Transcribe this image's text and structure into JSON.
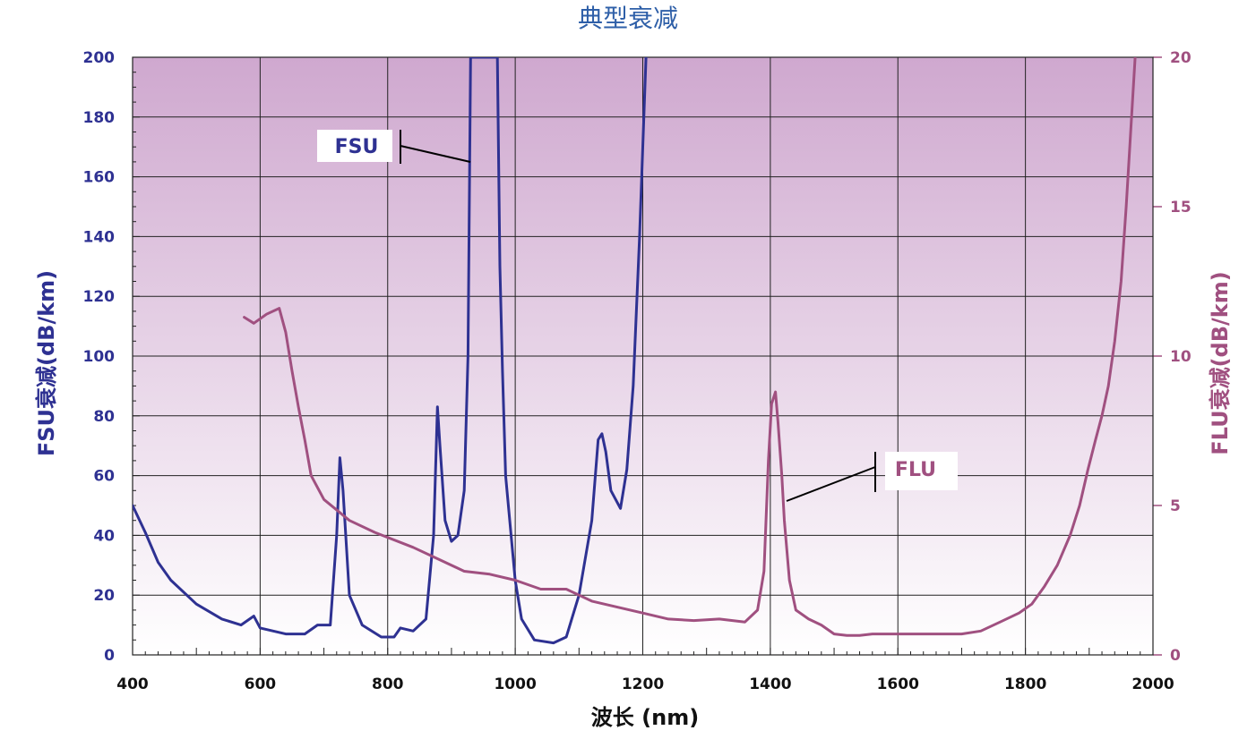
{
  "chart_data": {
    "type": "line",
    "title": "典型衰减",
    "xlabel": "波长 (nm)",
    "ylabel_left": "FSU衰减(dB/km)",
    "ylabel_right": "FLU衰减(dB/km)",
    "xlim": [
      400,
      2000
    ],
    "ylim_left": [
      0,
      200
    ],
    "ylim_right": [
      0,
      20
    ],
    "x_ticks": [
      400,
      600,
      800,
      1000,
      1200,
      1400,
      1600,
      1800,
      2000
    ],
    "y_ticks_left": [
      0,
      20,
      40,
      60,
      80,
      100,
      120,
      140,
      160,
      180,
      200
    ],
    "y_ticks_right": [
      0,
      5,
      10,
      15,
      20
    ],
    "grid": true,
    "background": "purple-gradient",
    "series": [
      {
        "name": "FSU",
        "axis": "left",
        "color": "#2e3192",
        "points": [
          [
            400,
            50
          ],
          [
            420,
            41
          ],
          [
            440,
            31
          ],
          [
            460,
            25
          ],
          [
            500,
            17
          ],
          [
            540,
            12
          ],
          [
            570,
            10
          ],
          [
            590,
            13
          ],
          [
            600,
            9
          ],
          [
            640,
            7
          ],
          [
            670,
            7
          ],
          [
            690,
            10
          ],
          [
            710,
            10
          ],
          [
            720,
            40
          ],
          [
            725,
            66
          ],
          [
            730,
            55
          ],
          [
            740,
            20
          ],
          [
            760,
            10
          ],
          [
            790,
            6
          ],
          [
            810,
            6
          ],
          [
            820,
            9
          ],
          [
            840,
            8
          ],
          [
            860,
            12
          ],
          [
            872,
            40
          ],
          [
            878,
            83
          ],
          [
            882,
            70
          ],
          [
            890,
            45
          ],
          [
            900,
            38
          ],
          [
            910,
            40
          ],
          [
            920,
            55
          ],
          [
            926,
            100
          ],
          [
            930,
            200
          ],
          [
            972,
            200
          ],
          [
            976,
            130
          ],
          [
            980,
            95
          ],
          [
            985,
            60
          ],
          [
            1000,
            25
          ],
          [
            1010,
            12
          ],
          [
            1030,
            5
          ],
          [
            1060,
            4
          ],
          [
            1080,
            6
          ],
          [
            1100,
            20
          ],
          [
            1120,
            45
          ],
          [
            1130,
            72
          ],
          [
            1136,
            74
          ],
          [
            1142,
            68
          ],
          [
            1150,
            55
          ],
          [
            1165,
            49
          ],
          [
            1175,
            62
          ],
          [
            1185,
            90
          ],
          [
            1195,
            140
          ],
          [
            1205,
            200
          ]
        ]
      },
      {
        "name": "FLU",
        "axis": "right",
        "color": "#a05080",
        "points": [
          [
            575,
            11.3
          ],
          [
            590,
            11.1
          ],
          [
            610,
            11.4
          ],
          [
            630,
            11.6
          ],
          [
            640,
            10.8
          ],
          [
            650,
            9.5
          ],
          [
            660,
            8.3
          ],
          [
            670,
            7.2
          ],
          [
            680,
            6.0
          ],
          [
            700,
            5.2
          ],
          [
            740,
            4.5
          ],
          [
            780,
            4.1
          ],
          [
            840,
            3.6
          ],
          [
            880,
            3.2
          ],
          [
            920,
            2.8
          ],
          [
            960,
            2.7
          ],
          [
            1000,
            2.5
          ],
          [
            1040,
            2.2
          ],
          [
            1080,
            2.2
          ],
          [
            1120,
            1.8
          ],
          [
            1160,
            1.6
          ],
          [
            1200,
            1.4
          ],
          [
            1240,
            1.2
          ],
          [
            1280,
            1.15
          ],
          [
            1320,
            1.2
          ],
          [
            1360,
            1.1
          ],
          [
            1380,
            1.5
          ],
          [
            1390,
            2.8
          ],
          [
            1397,
            6.5
          ],
          [
            1402,
            8.4
          ],
          [
            1408,
            8.8
          ],
          [
            1412,
            7.8
          ],
          [
            1418,
            6.0
          ],
          [
            1422,
            4.5
          ],
          [
            1430,
            2.5
          ],
          [
            1440,
            1.5
          ],
          [
            1460,
            1.2
          ],
          [
            1480,
            1.0
          ],
          [
            1500,
            0.7
          ],
          [
            1520,
            0.65
          ],
          [
            1540,
            0.65
          ],
          [
            1560,
            0.7
          ],
          [
            1580,
            0.7
          ],
          [
            1620,
            0.7
          ],
          [
            1660,
            0.7
          ],
          [
            1700,
            0.7
          ],
          [
            1730,
            0.8
          ],
          [
            1760,
            1.1
          ],
          [
            1790,
            1.4
          ],
          [
            1810,
            1.7
          ],
          [
            1830,
            2.3
          ],
          [
            1850,
            3.0
          ],
          [
            1870,
            4.0
          ],
          [
            1885,
            5.0
          ],
          [
            1898,
            6.2
          ],
          [
            1910,
            7.2
          ],
          [
            1920,
            8.0
          ],
          [
            1930,
            9.0
          ],
          [
            1940,
            10.5
          ],
          [
            1950,
            12.5
          ],
          [
            1958,
            15.0
          ],
          [
            1965,
            17.5
          ],
          [
            1972,
            20.0
          ]
        ]
      }
    ],
    "annotations": [
      {
        "text": "FSU",
        "points_to": [
          930,
          165
        ]
      },
      {
        "text": "FLU",
        "points_to": [
          1420,
          5.2
        ]
      }
    ]
  },
  "colors": {
    "title": "#2e5fa8",
    "left_axis": "#2e3192",
    "right_axis": "#a05080",
    "grid": "#222222",
    "bg_top": "#cfa8cf",
    "bg_bottom": "#ffffff"
  }
}
